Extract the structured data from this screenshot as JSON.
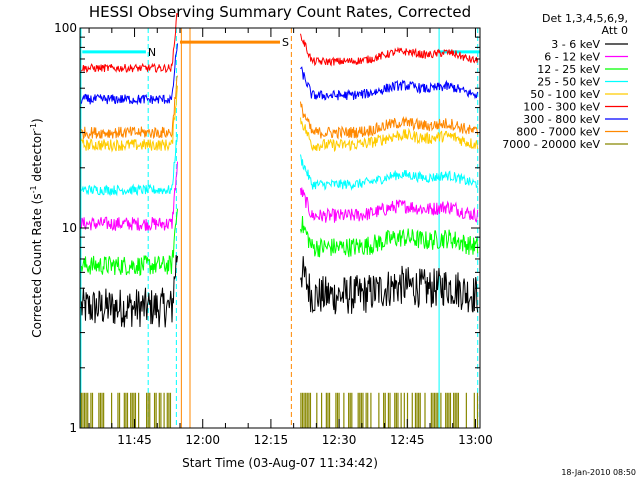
{
  "chart_data": {
    "type": "line",
    "title": "HESSI Observing Summary Count Rates, Corrected",
    "xlabel": "Start Time (03-Aug-07 11:34:42)",
    "ylabel_main": "Corrected Count Rate (s",
    "ylabel_sup1": "-1",
    "ylabel_mid": " detector",
    "ylabel_sup2": "-1",
    "ylabel_end": ")",
    "yscale": "log",
    "ylim": [
      1,
      100
    ],
    "xlim_minutes": [
      693,
      781
    ],
    "xticks": [
      {
        "m": 705,
        "label": "11:45"
      },
      {
        "m": 720,
        "label": "12:00"
      },
      {
        "m": 735,
        "label": "12:15"
      },
      {
        "m": 750,
        "label": "12:30"
      },
      {
        "m": 765,
        "label": "12:45"
      },
      {
        "m": 780,
        "label": "13:00"
      }
    ],
    "yticks": [
      {
        "v": 1,
        "label": "1"
      },
      {
        "v": 10,
        "label": "10"
      },
      {
        "v": 100,
        "label": "100"
      }
    ],
    "legend_title": [
      "Det 1,3,4,5,6,9,",
      "Att 0"
    ],
    "series": [
      {
        "name": "3 - 6 keV",
        "color": "#000000",
        "pre": 4.0,
        "post": 4.6,
        "noise": 0.1
      },
      {
        "name": "6 - 12 keV",
        "color": "#ff00ff",
        "pre": 10.5,
        "post": 11.5,
        "noise": 0.035
      },
      {
        "name": "12 - 25 keV",
        "color": "#00ff00",
        "pre": 6.5,
        "post": 8.0,
        "noise": 0.05
      },
      {
        "name": "25 - 50 keV",
        "color": "#00ffff",
        "pre": 15.5,
        "post": 16.5,
        "noise": 0.025
      },
      {
        "name": "50 - 100 keV",
        "color": "#ffcc00",
        "pre": 26.0,
        "post": 26.0,
        "noise": 0.03
      },
      {
        "name": "100 - 300 keV",
        "color": "#ff0000",
        "pre": 63.0,
        "post": 68.0,
        "noise": 0.02
      },
      {
        "name": "300 - 800 keV",
        "color": "#0000ff",
        "pre": 44.0,
        "post": 46.0,
        "noise": 0.025
      },
      {
        "name": "800 - 7000 keV",
        "color": "#ff8800",
        "pre": 30.0,
        "post": 30.0,
        "noise": 0.03
      },
      {
        "name": "7000 - 20000 keV",
        "color": "#888800",
        "pre": 1.5,
        "post": 1.5,
        "noise": 0.0
      }
    ],
    "flags": [
      {
        "label": "N",
        "color": "#00ffff",
        "start_m": 693.5,
        "end_m": 707.5,
        "level": 76
      },
      {
        "label": "S",
        "color": "#ff8800",
        "start_m": 715.0,
        "end_m": 737.0,
        "level": 85
      },
      {
        "label": "",
        "color": "#00ffff",
        "start_m": 772.0,
        "end_m": 781.0,
        "level": 76
      }
    ],
    "vlines": [
      {
        "m": 693.2,
        "color": "#00ffff",
        "style": "solid"
      },
      {
        "m": 708.0,
        "color": "#00ffff",
        "style": "dash"
      },
      {
        "m": 714.2,
        "color": "#00ffff",
        "style": "dash"
      },
      {
        "m": 715.3,
        "color": "#ff8800",
        "style": "solid"
      },
      {
        "m": 717.2,
        "color": "#ff8800",
        "style": "solid"
      },
      {
        "m": 739.5,
        "color": "#ff8800",
        "style": "dash"
      },
      {
        "m": 772.0,
        "color": "#00ffff",
        "style": "solid"
      },
      {
        "m": 780.5,
        "color": "#00ffff",
        "style": "dash"
      }
    ],
    "gap_m": [
      714.5,
      741.5
    ]
  },
  "timestamp": "18-Jan-2010 08:50"
}
